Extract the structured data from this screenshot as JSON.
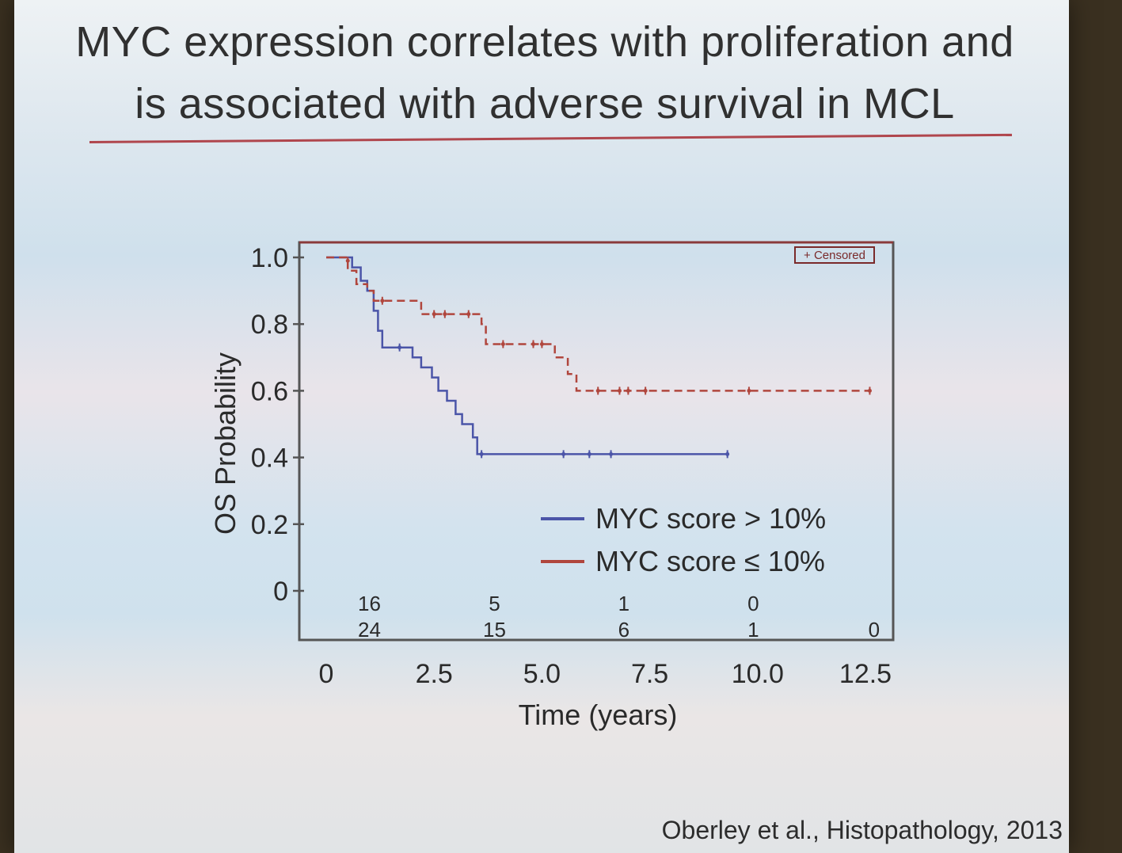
{
  "slide": {
    "title_line1": "MYC expression correlates with proliferation and",
    "title_line2": "is associated with adverse survival in MCL",
    "citation": "Oberley et al., Histopathology, 2013"
  },
  "colors": {
    "high_myc": "#4b55a8",
    "low_myc": "#b0463d",
    "axis": "#555555",
    "title_rule": "#b0464d"
  },
  "chart_data": {
    "type": "line",
    "xlabel": "Time (years)",
    "ylabel": "OS Probability",
    "xlim": [
      0,
      12.5
    ],
    "ylim": [
      0,
      1.0
    ],
    "x_ticks": [
      0,
      2.5,
      5.0,
      7.5,
      10.0,
      12.5
    ],
    "x_tick_labels": [
      "0",
      "2.5",
      "5.0",
      "7.5",
      "10.0",
      "12.5"
    ],
    "y_ticks": [
      0,
      0.2,
      0.4,
      0.6,
      0.8,
      1.0
    ],
    "y_tick_labels": [
      "0",
      "0.2",
      "0.4",
      "0.6",
      "0.8",
      "1.0"
    ],
    "censored_label": "+ Censored",
    "series": [
      {
        "name": "MYC score > 10%",
        "style": "solid",
        "steps": [
          [
            0,
            1.0
          ],
          [
            0.6,
            1.0
          ],
          [
            0.6,
            0.97
          ],
          [
            0.8,
            0.97
          ],
          [
            0.8,
            0.93
          ],
          [
            0.95,
            0.93
          ],
          [
            0.95,
            0.9
          ],
          [
            1.1,
            0.9
          ],
          [
            1.1,
            0.84
          ],
          [
            1.2,
            0.84
          ],
          [
            1.2,
            0.78
          ],
          [
            1.3,
            0.78
          ],
          [
            1.3,
            0.73
          ],
          [
            2.0,
            0.73
          ],
          [
            2.0,
            0.7
          ],
          [
            2.2,
            0.7
          ],
          [
            2.2,
            0.67
          ],
          [
            2.45,
            0.67
          ],
          [
            2.45,
            0.64
          ],
          [
            2.6,
            0.64
          ],
          [
            2.6,
            0.6
          ],
          [
            2.8,
            0.6
          ],
          [
            2.8,
            0.57
          ],
          [
            3.0,
            0.57
          ],
          [
            3.0,
            0.53
          ],
          [
            3.15,
            0.53
          ],
          [
            3.15,
            0.5
          ],
          [
            3.4,
            0.5
          ],
          [
            3.4,
            0.46
          ],
          [
            3.5,
            0.46
          ],
          [
            3.5,
            0.41
          ],
          [
            9.3,
            0.41
          ]
        ],
        "censored": [
          [
            1.7,
            0.73
          ],
          [
            3.6,
            0.41
          ],
          [
            5.5,
            0.41
          ],
          [
            6.1,
            0.41
          ],
          [
            6.6,
            0.41
          ],
          [
            9.3,
            0.41
          ]
        ],
        "at_risk": [
          16,
          5,
          1,
          0
        ]
      },
      {
        "name": "MYC score ≤ 10%",
        "style": "dashed",
        "steps": [
          [
            0,
            1.0
          ],
          [
            0.5,
            1.0
          ],
          [
            0.5,
            0.96
          ],
          [
            0.7,
            0.96
          ],
          [
            0.7,
            0.92
          ],
          [
            0.95,
            0.92
          ],
          [
            0.95,
            0.9
          ],
          [
            1.1,
            0.9
          ],
          [
            1.1,
            0.87
          ],
          [
            2.2,
            0.87
          ],
          [
            2.2,
            0.83
          ],
          [
            3.6,
            0.83
          ],
          [
            3.6,
            0.8
          ],
          [
            3.7,
            0.8
          ],
          [
            3.7,
            0.74
          ],
          [
            5.3,
            0.74
          ],
          [
            5.3,
            0.7
          ],
          [
            5.6,
            0.7
          ],
          [
            5.6,
            0.65
          ],
          [
            5.8,
            0.65
          ],
          [
            5.8,
            0.6
          ],
          [
            12.6,
            0.6
          ]
        ],
        "censored": [
          [
            0.5,
            0.99
          ],
          [
            1.3,
            0.87
          ],
          [
            2.5,
            0.83
          ],
          [
            2.75,
            0.83
          ],
          [
            3.3,
            0.83
          ],
          [
            4.1,
            0.74
          ],
          [
            4.8,
            0.74
          ],
          [
            5.0,
            0.74
          ],
          [
            6.3,
            0.6
          ],
          [
            6.8,
            0.6
          ],
          [
            7.0,
            0.6
          ],
          [
            7.4,
            0.6
          ],
          [
            9.8,
            0.6
          ],
          [
            12.6,
            0.6
          ]
        ],
        "at_risk": [
          24,
          15,
          6,
          1,
          0
        ]
      }
    ],
    "at_risk_x": [
      1.0,
      3.9,
      6.9,
      9.9,
      12.7
    ]
  }
}
